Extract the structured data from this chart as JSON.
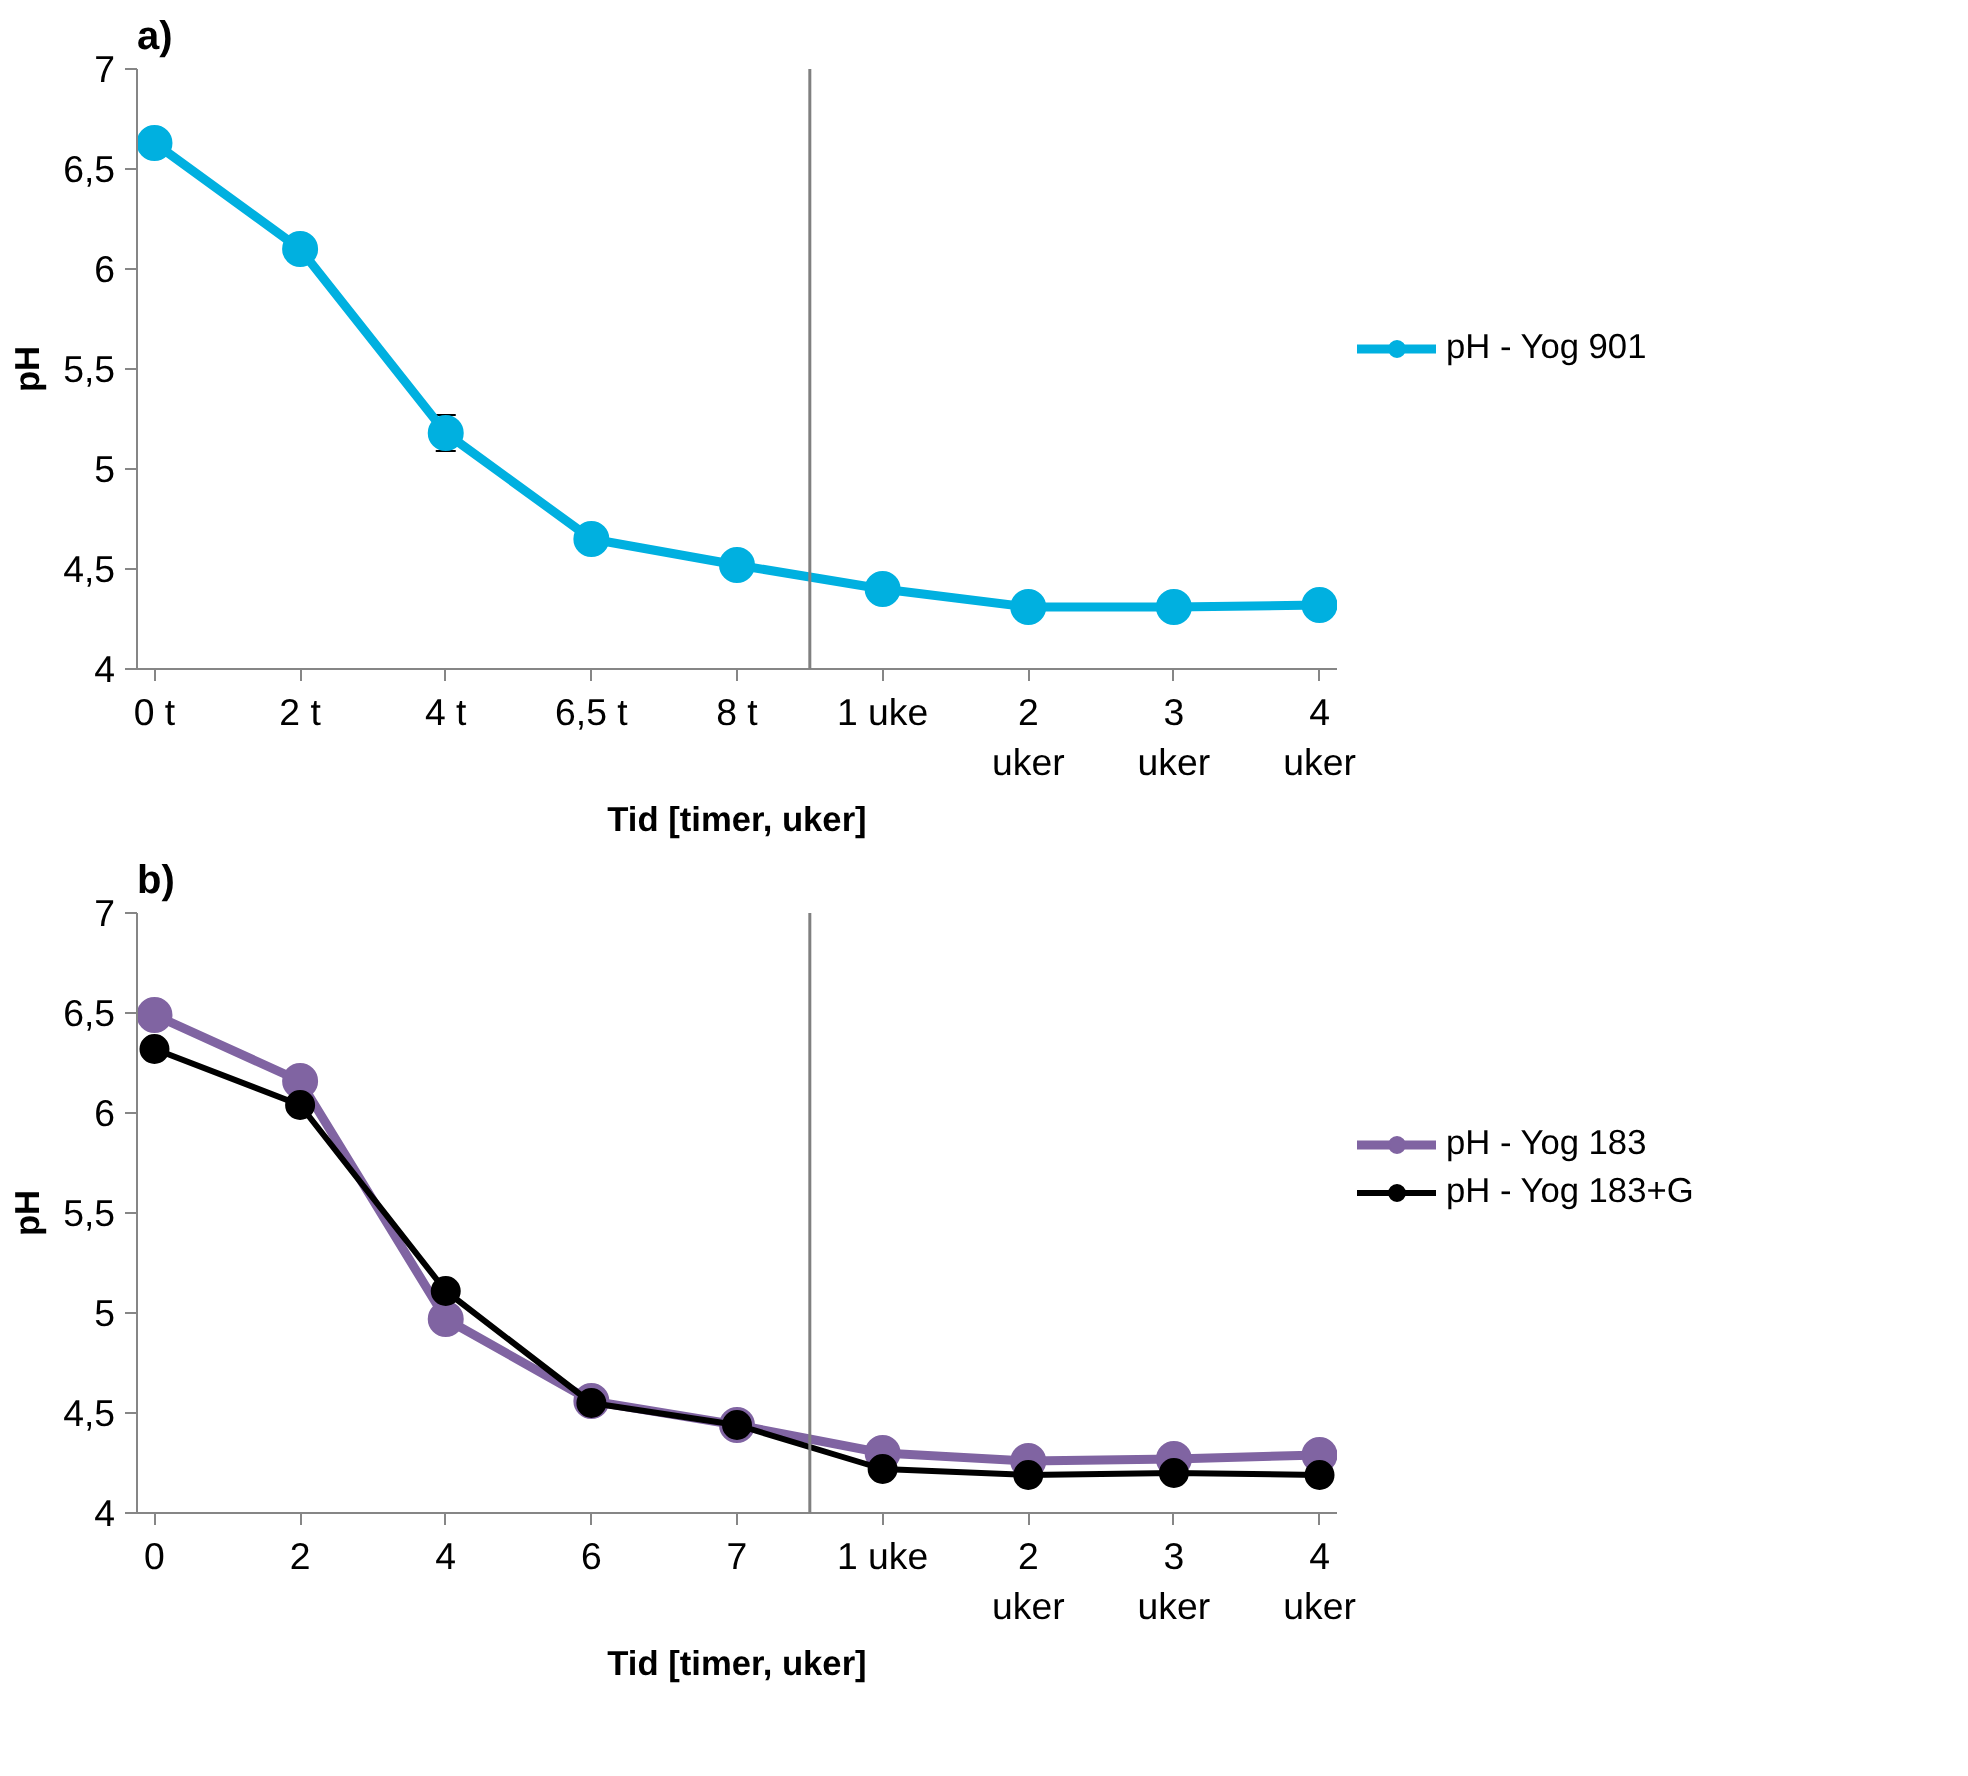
{
  "chart_data": [
    {
      "type": "line",
      "title": "a)",
      "xlabel": "Tid [timer, uker]",
      "ylabel": "pH",
      "categories": [
        "0 t",
        "2 t",
        "4 t",
        "6,5 t",
        "8 t",
        "1 uke",
        "2\nuker",
        "3\nuker",
        "4\nuker"
      ],
      "ylim": [
        4,
        7
      ],
      "yticks": [
        4,
        {
          "value": 4.5,
          "label": "4,5"
        },
        5,
        {
          "value": 5.5,
          "label": "5,5"
        },
        6,
        {
          "value": 6.5,
          "label": "6,5"
        },
        7
      ],
      "series": [
        {
          "name": "pH - Yog 901",
          "color": "#00b0e0",
          "values": [
            6.63,
            6.1,
            5.18,
            4.65,
            4.52,
            4.4,
            4.31,
            4.31,
            4.32
          ],
          "errors": [
            null,
            null,
            0.09,
            null,
            null,
            null,
            null,
            null,
            null
          ]
        }
      ],
      "marker": "circle",
      "grid": false,
      "legend": "right"
    },
    {
      "type": "line",
      "title": "b)",
      "xlabel": "Tid [timer, uker]",
      "ylabel": "pH",
      "categories": [
        "0",
        "2",
        "4",
        "6",
        "7",
        "1 uke",
        "2\nuker",
        "3\nuker",
        "4\nuker"
      ],
      "ylim": [
        4,
        7
      ],
      "yticks": [
        4,
        {
          "value": 4.5,
          "label": "4,5"
        },
        5,
        {
          "value": 5.5,
          "label": "5,5"
        },
        6,
        {
          "value": 6.5,
          "label": "6,5"
        },
        7
      ],
      "series": [
        {
          "name": "pH - Yog 183",
          "color": "#8064a2",
          "values": [
            6.49,
            6.16,
            4.97,
            4.56,
            4.44,
            4.3,
            4.26,
            4.27,
            4.29
          ]
        },
        {
          "name": "pH - Yog 183+G",
          "color": "#000000",
          "values": [
            6.32,
            6.04,
            5.11,
            4.55,
            4.44,
            4.22,
            4.19,
            4.2,
            4.19
          ]
        }
      ],
      "marker": "circle",
      "grid": false,
      "legend": "right"
    }
  ]
}
